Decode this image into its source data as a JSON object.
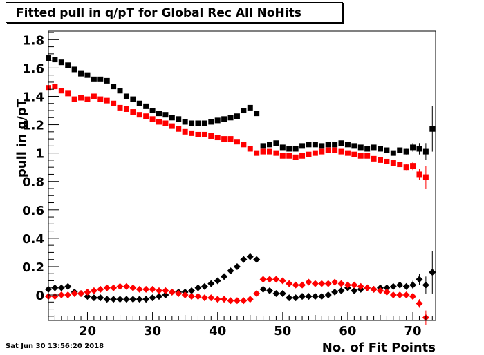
{
  "title": "Fitted pull in q/pT for Global Rec All NoHits",
  "timestamp": "Sat Jun 30 13:56:20 2018",
  "colors": {
    "black": "#000000",
    "red": "#ff0000"
  },
  "chart_data": {
    "type": "scatter",
    "title": "Fitted pull in q/pT for Global Rec All NoHits",
    "xlabel": "No. of Fit Points",
    "ylabel": "pull in q/pT",
    "xlim": [
      14,
      73.5
    ],
    "ylim": [
      -0.18,
      1.86
    ],
    "xticks": [
      20,
      30,
      40,
      50,
      60,
      70
    ],
    "yticks": [
      0,
      0.2,
      0.4,
      0.6,
      0.8,
      1,
      1.2,
      1.4,
      1.6,
      1.8
    ],
    "grid": false,
    "x": [
      14,
      15,
      16,
      17,
      18,
      19,
      20,
      21,
      22,
      23,
      24,
      25,
      26,
      27,
      28,
      29,
      30,
      31,
      32,
      33,
      34,
      35,
      36,
      37,
      38,
      39,
      40,
      41,
      42,
      43,
      44,
      45,
      46,
      47,
      48,
      49,
      50,
      51,
      52,
      53,
      54,
      55,
      56,
      57,
      58,
      59,
      60,
      61,
      62,
      63,
      64,
      65,
      66,
      67,
      68,
      69,
      70,
      71,
      72,
      73
    ],
    "series": [
      {
        "marker": "square",
        "color": "#000000",
        "values": [
          1.67,
          1.66,
          1.64,
          1.62,
          1.59,
          1.56,
          1.55,
          1.52,
          1.52,
          1.51,
          1.47,
          1.44,
          1.4,
          1.38,
          1.35,
          1.33,
          1.3,
          1.28,
          1.27,
          1.25,
          1.24,
          1.22,
          1.21,
          1.21,
          1.21,
          1.22,
          1.23,
          1.24,
          1.25,
          1.26,
          1.3,
          1.32,
          1.28,
          1.05,
          1.06,
          1.07,
          1.04,
          1.03,
          1.03,
          1.05,
          1.06,
          1.06,
          1.05,
          1.06,
          1.06,
          1.07,
          1.06,
          1.05,
          1.04,
          1.03,
          1.04,
          1.03,
          1.02,
          1.0,
          1.02,
          1.01,
          1.04,
          1.03,
          1.01,
          1.17
        ],
        "errors": [
          0,
          0,
          0,
          0,
          0,
          0,
          0,
          0,
          0,
          0,
          0,
          0,
          0,
          0,
          0,
          0,
          0,
          0,
          0,
          0,
          0,
          0,
          0,
          0,
          0,
          0,
          0,
          0,
          0,
          0,
          0,
          0,
          0,
          0,
          0,
          0,
          0,
          0,
          0,
          0,
          0,
          0,
          0,
          0,
          0,
          0,
          0,
          0,
          0,
          0,
          0,
          0,
          0,
          0,
          0,
          0.02,
          0.03,
          0.04,
          0.06,
          0.16
        ]
      },
      {
        "marker": "square",
        "color": "#ff0000",
        "values": [
          1.46,
          1.47,
          1.44,
          1.42,
          1.38,
          1.39,
          1.38,
          1.4,
          1.38,
          1.37,
          1.35,
          1.32,
          1.31,
          1.29,
          1.27,
          1.26,
          1.24,
          1.22,
          1.21,
          1.19,
          1.17,
          1.15,
          1.14,
          1.13,
          1.13,
          1.12,
          1.11,
          1.1,
          1.1,
          1.08,
          1.06,
          1.03,
          1.0,
          1.01,
          1.01,
          1.0,
          0.98,
          0.98,
          0.97,
          0.98,
          0.99,
          1.0,
          1.01,
          1.02,
          1.02,
          1.01,
          1.0,
          0.99,
          0.98,
          0.98,
          0.96,
          0.95,
          0.94,
          0.93,
          0.92,
          0.9,
          0.91,
          0.85,
          0.83,
          null
        ],
        "errors": [
          0,
          0,
          0,
          0,
          0,
          0,
          0,
          0,
          0,
          0,
          0,
          0,
          0,
          0,
          0,
          0,
          0,
          0,
          0,
          0,
          0,
          0,
          0,
          0,
          0,
          0,
          0,
          0,
          0,
          0,
          0,
          0,
          0,
          0,
          0,
          0,
          0,
          0,
          0,
          0,
          0,
          0,
          0,
          0,
          0,
          0,
          0,
          0,
          0,
          0,
          0,
          0,
          0,
          0,
          0,
          0.02,
          0.03,
          0.04,
          0.08,
          0
        ]
      },
      {
        "marker": "diamond",
        "color": "#000000",
        "values": [
          0.04,
          0.05,
          0.05,
          0.06,
          0.02,
          0.01,
          -0.01,
          -0.02,
          -0.02,
          -0.03,
          -0.03,
          -0.03,
          -0.03,
          -0.03,
          -0.03,
          -0.03,
          -0.02,
          -0.01,
          0.0,
          0.02,
          0.02,
          0.02,
          0.03,
          0.05,
          0.06,
          0.08,
          0.1,
          0.13,
          0.17,
          0.2,
          0.25,
          0.27,
          0.25,
          0.04,
          0.03,
          0.01,
          0.01,
          -0.02,
          -0.02,
          -0.01,
          -0.01,
          -0.01,
          -0.01,
          0.0,
          0.02,
          0.03,
          0.05,
          0.03,
          0.04,
          0.05,
          0.04,
          0.05,
          0.05,
          0.06,
          0.07,
          0.06,
          0.07,
          0.11,
          0.07,
          0.16
        ],
        "errors": [
          0,
          0,
          0,
          0,
          0,
          0,
          0,
          0,
          0,
          0,
          0,
          0,
          0,
          0,
          0,
          0,
          0,
          0,
          0,
          0,
          0,
          0,
          0,
          0,
          0,
          0,
          0,
          0,
          0,
          0,
          0,
          0,
          0,
          0,
          0,
          0,
          0,
          0,
          0,
          0,
          0,
          0,
          0,
          0,
          0,
          0,
          0,
          0,
          0,
          0,
          0,
          0,
          0,
          0,
          0,
          0.02,
          0.03,
          0.04,
          0.06,
          0.15
        ]
      },
      {
        "marker": "diamond",
        "color": "#ff0000",
        "values": [
          -0.01,
          -0.01,
          0.0,
          0.0,
          0.01,
          0.01,
          0.02,
          0.03,
          0.04,
          0.05,
          0.05,
          0.06,
          0.06,
          0.05,
          0.04,
          0.04,
          0.04,
          0.03,
          0.03,
          0.02,
          0.01,
          0.0,
          -0.01,
          -0.01,
          -0.02,
          -0.02,
          -0.03,
          -0.03,
          -0.04,
          -0.04,
          -0.04,
          -0.03,
          0.01,
          0.11,
          0.11,
          0.11,
          0.1,
          0.08,
          0.07,
          0.07,
          0.09,
          0.08,
          0.08,
          0.08,
          0.09,
          0.08,
          0.07,
          0.07,
          0.06,
          0.05,
          0.04,
          0.03,
          0.02,
          0.0,
          0.0,
          0.0,
          -0.01,
          -0.06,
          -0.16,
          null
        ],
        "errors": [
          0,
          0,
          0,
          0,
          0,
          0,
          0,
          0,
          0,
          0,
          0,
          0,
          0,
          0,
          0,
          0,
          0,
          0,
          0,
          0,
          0,
          0,
          0,
          0,
          0,
          0,
          0,
          0,
          0,
          0,
          0,
          0,
          0,
          0,
          0,
          0,
          0,
          0,
          0,
          0,
          0,
          0,
          0,
          0,
          0,
          0,
          0,
          0,
          0,
          0,
          0,
          0,
          0,
          0,
          0,
          0.01,
          0.02,
          0.03,
          0.05,
          0
        ]
      }
    ]
  }
}
